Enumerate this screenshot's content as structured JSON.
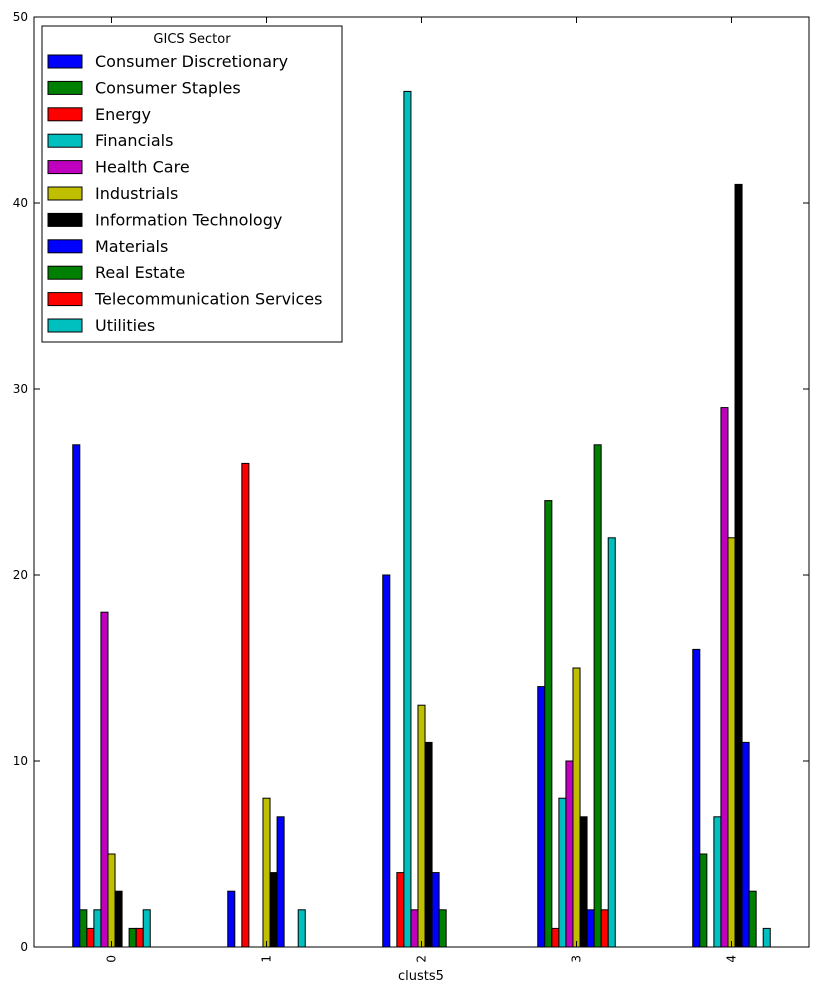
{
  "chart_data": {
    "type": "bar",
    "xlabel": "clusts5",
    "ylabel": "",
    "ylim": [
      0,
      50
    ],
    "yticks": [
      "0",
      "10",
      "20",
      "30",
      "40",
      "50"
    ],
    "grid": false,
    "legend": {
      "title": "GICS Sector",
      "position": "top-left"
    },
    "categories": [
      "0",
      "1",
      "2",
      "3",
      "4"
    ],
    "series": [
      {
        "name": "Consumer Discretionary",
        "color": "#0000ff",
        "values": [
          27,
          3,
          20,
          14,
          16
        ]
      },
      {
        "name": "Consumer Staples",
        "color": "#008000",
        "values": [
          2,
          0,
          0,
          24,
          5
        ]
      },
      {
        "name": "Energy",
        "color": "#ff0000",
        "values": [
          1,
          26,
          4,
          1,
          0
        ]
      },
      {
        "name": "Financials",
        "color": "#00bfbf",
        "values": [
          2,
          0,
          46,
          8,
          7
        ]
      },
      {
        "name": "Health Care",
        "color": "#bf00bf",
        "values": [
          18,
          0,
          2,
          10,
          29
        ]
      },
      {
        "name": "Industrials",
        "color": "#bfbf00",
        "values": [
          5,
          8,
          13,
          15,
          22
        ]
      },
      {
        "name": "Information Technology",
        "color": "#000000",
        "values": [
          3,
          4,
          11,
          7,
          41
        ]
      },
      {
        "name": "Materials",
        "color": "#0000ff",
        "values": [
          0,
          7,
          4,
          2,
          11
        ]
      },
      {
        "name": "Real Estate",
        "color": "#008000",
        "values": [
          1,
          0,
          2,
          27,
          3
        ]
      },
      {
        "name": "Telecommunication Services",
        "color": "#ff0000",
        "values": [
          1,
          0,
          0,
          2,
          0
        ]
      },
      {
        "name": "Utilities",
        "color": "#00bfbf",
        "values": [
          2,
          2,
          0,
          22,
          1
        ]
      }
    ]
  }
}
